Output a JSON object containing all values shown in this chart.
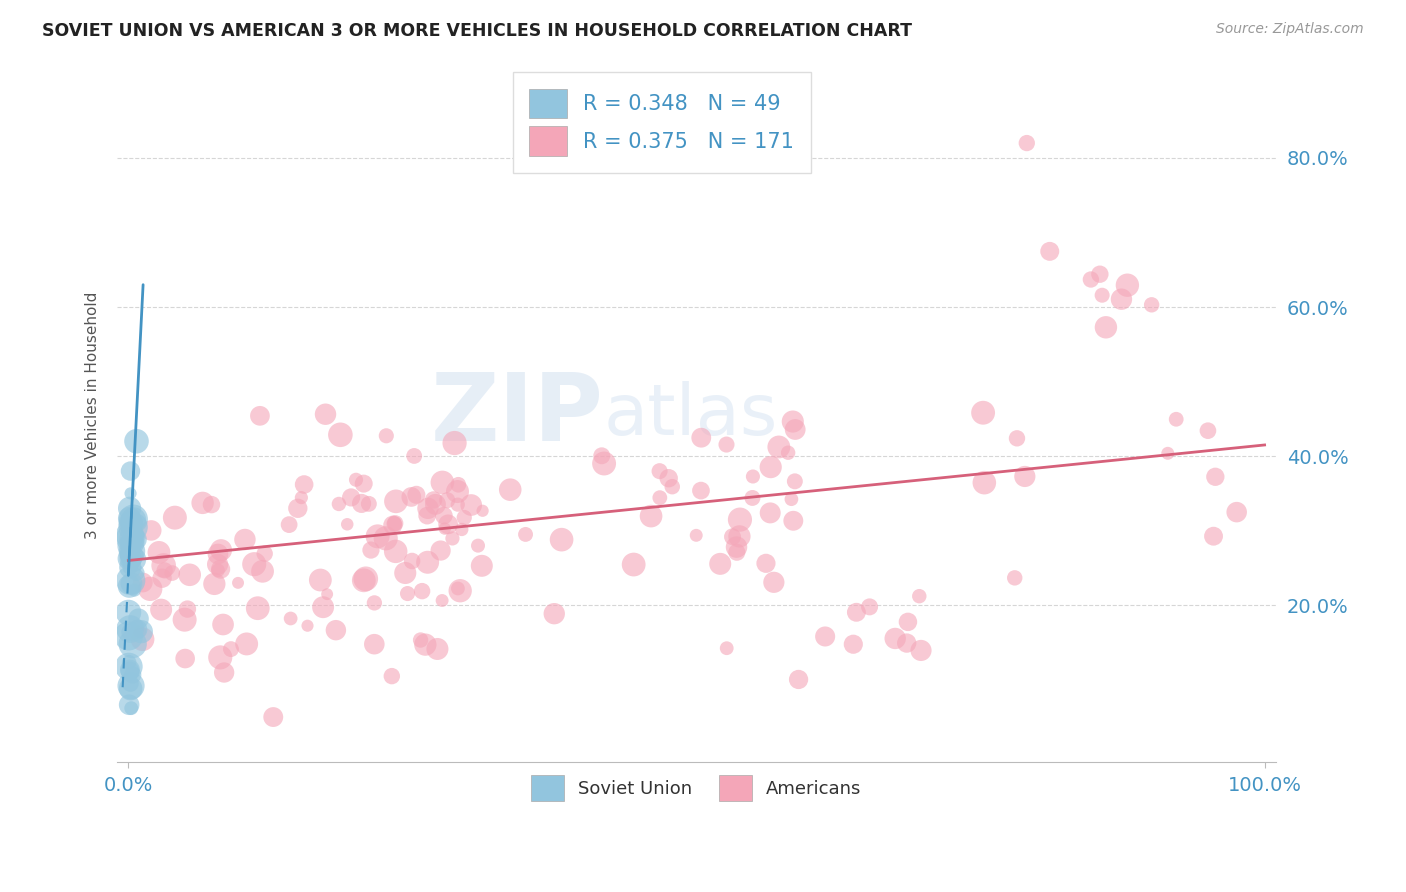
{
  "title": "SOVIET UNION VS AMERICAN 3 OR MORE VEHICLES IN HOUSEHOLD CORRELATION CHART",
  "source": "Source: ZipAtlas.com",
  "ylabel": "3 or more Vehicles in Household",
  "watermark_zip": "ZIP",
  "watermark_atlas": "atlas",
  "legend_soviet_label": "R = 0.348   N = 49",
  "legend_american_label": "R = 0.375   N = 171",
  "legend_soviet_R": "0.348",
  "legend_soviet_N": "49",
  "legend_american_R": "0.375",
  "legend_american_N": "171",
  "soviet_color": "#92c5de",
  "soviet_line_color": "#4393c3",
  "american_color": "#f4a6b8",
  "american_line_color": "#d6607a",
  "background_color": "#ffffff",
  "grid_color": "#cccccc",
  "tick_color": "#4393c3",
  "label_color": "#555555",
  "xlim": [
    -0.01,
    1.01
  ],
  "ylim": [
    -0.01,
    0.92
  ],
  "ytick_positions": [
    0.2,
    0.4,
    0.6,
    0.8
  ],
  "ytick_labels": [
    "20.0%",
    "40.0%",
    "60.0%",
    "80.0%"
  ],
  "xtick_positions": [
    0.0,
    1.0
  ],
  "xtick_labels": [
    "0.0%",
    "100.0%"
  ]
}
